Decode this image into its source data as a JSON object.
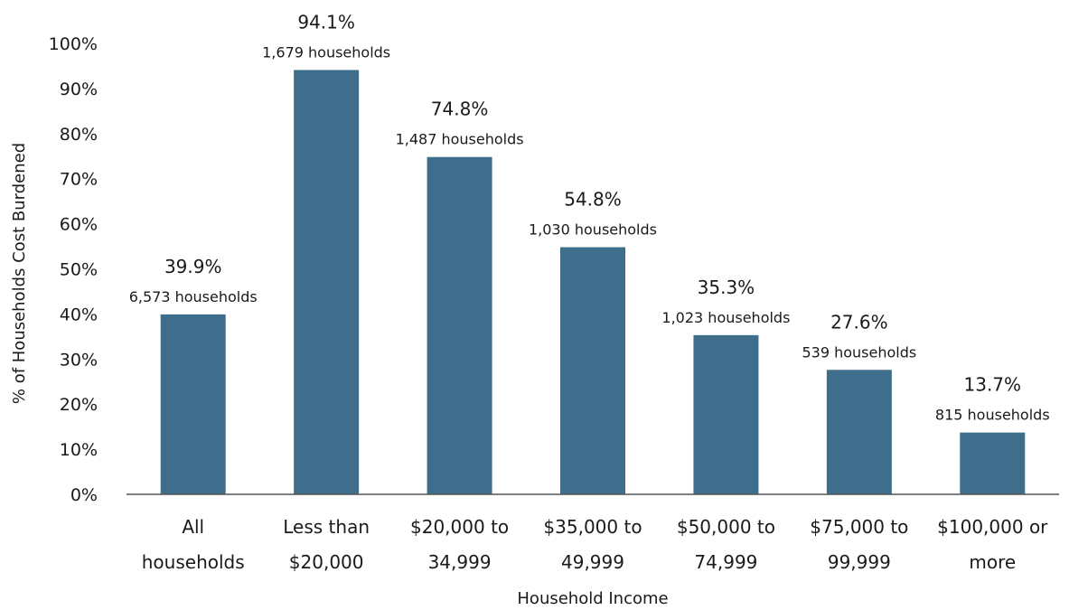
{
  "chart_data": {
    "type": "bar",
    "categories": [
      [
        "All",
        "households"
      ],
      [
        "Less than",
        "$20,000"
      ],
      [
        "$20,000 to",
        "34,999"
      ],
      [
        "$35,000 to",
        "49,999"
      ],
      [
        "$50,000 to",
        "74,999"
      ],
      [
        "$75,000 to",
        "99,999"
      ],
      [
        "$100,000 or",
        "more"
      ]
    ],
    "values": [
      39.9,
      94.1,
      74.8,
      54.8,
      35.3,
      27.6,
      13.7
    ],
    "value_labels": [
      "39.9%",
      "94.1%",
      "74.8%",
      "54.8%",
      "35.3%",
      "27.6%",
      "13.7%"
    ],
    "household_labels": [
      "6,573 households",
      "1,679 households",
      "1,487 households",
      "1,030 households",
      "1,023 households",
      "539 households",
      "815 households"
    ],
    "xlabel": "Household Income",
    "ylabel": "% of Households Cost Burdened",
    "ylim": [
      0,
      100
    ],
    "yticks": [
      0,
      10,
      20,
      30,
      40,
      50,
      60,
      70,
      80,
      90,
      100
    ],
    "ytick_labels": [
      "0%",
      "10%",
      "20%",
      "30%",
      "40%",
      "50%",
      "60%",
      "70%",
      "80%",
      "90%",
      "100%"
    ],
    "grid": false,
    "bar_color": "#3f6e8c"
  }
}
